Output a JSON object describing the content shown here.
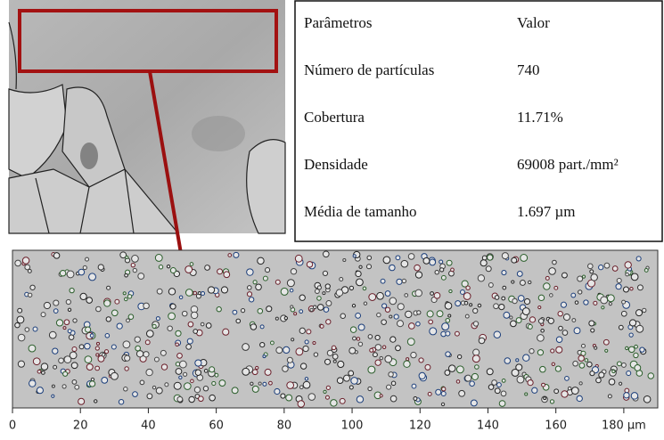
{
  "table": {
    "header": [
      "Parâmetros",
      "Valor"
    ],
    "rows": [
      [
        "Número de partículas",
        "740"
      ],
      [
        "Cobertura",
        "11.71%"
      ],
      [
        "Densidade",
        "69008 part./mm²"
      ],
      [
        "Média de tamanho",
        "1.697 µm"
      ]
    ]
  },
  "scale_bar": {
    "xlim": [
      0,
      190
    ],
    "xticks": [
      0,
      20,
      40,
      60,
      80,
      100,
      120,
      140,
      160,
      {
        "value": 180,
        "label": "180 µm"
      }
    ]
  }
}
